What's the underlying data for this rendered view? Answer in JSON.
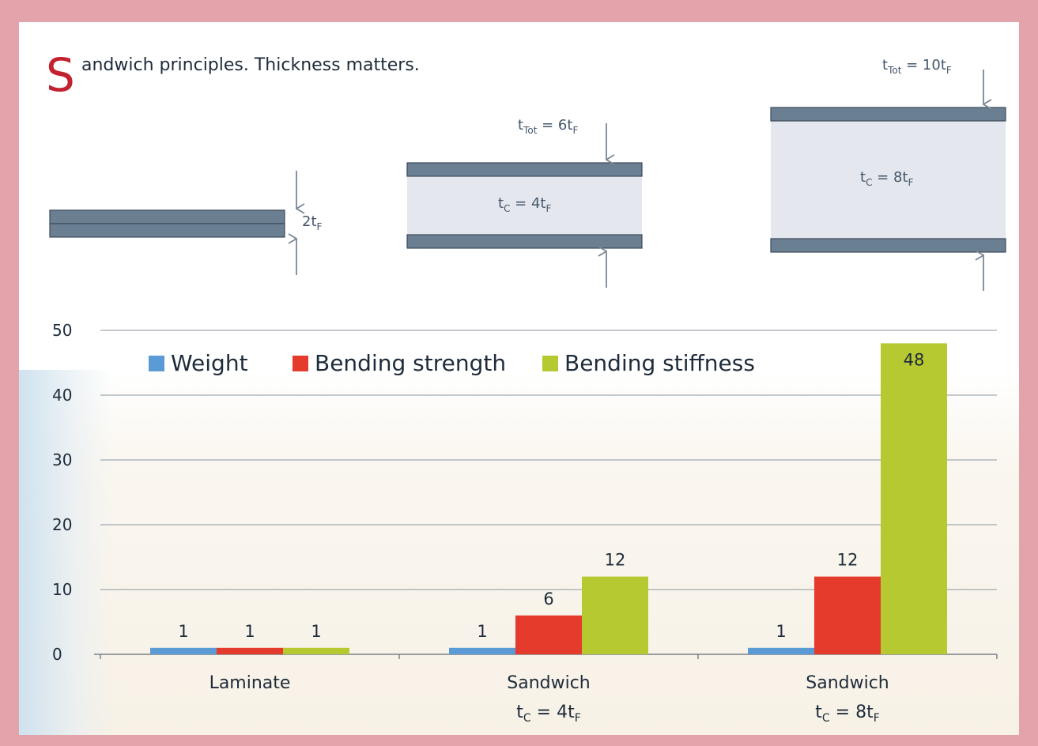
{
  "title": {
    "initial": "S",
    "rest": "andwich principles. Thickness matters."
  },
  "diagrams": {
    "laminate": {
      "thickness_main": "2t",
      "thickness_sub": "F"
    },
    "sandwich_4": {
      "total_prefix": "t",
      "total_sub": "Tot",
      "total_eq": " = 6t",
      "total_sub2": "F",
      "core_prefix": "t",
      "core_sub": "C",
      "core_eq": " = 4t",
      "core_sub2": "F"
    },
    "sandwich_8": {
      "total_prefix": "t",
      "total_sub": "Tot",
      "total_eq": " = 10t",
      "total_sub2": "F",
      "core_prefix": "t",
      "core_sub": "C",
      "core_eq": " = 8t",
      "core_sub2": "F"
    }
  },
  "colors": {
    "frame": "#e2a3aa",
    "title_accent": "#c2212f",
    "skin": "#6b7f93",
    "core": "#e4e7ed",
    "arrow": "#7a8796"
  },
  "chart_data": {
    "type": "bar",
    "categories": [
      "Laminate",
      "Sandwich",
      "Sandwich"
    ],
    "category_sublabels": [
      null,
      {
        "prefix": "t",
        "sub": "C",
        "eq": " = 4t",
        "sub2": "F"
      },
      {
        "prefix": "t",
        "sub": "C",
        "eq": " = 8t",
        "sub2": "F"
      }
    ],
    "series": [
      {
        "name": "Weight",
        "color": "#5b9bd5",
        "values": [
          1,
          1,
          1
        ]
      },
      {
        "name": "Bending strength",
        "color": "#e53b2c",
        "values": [
          1,
          6,
          12
        ]
      },
      {
        "name": "Bending stiffness",
        "color": "#b7c930",
        "values": [
          1,
          12,
          48
        ]
      }
    ],
    "y_ticks": [
      0,
      10,
      20,
      30,
      40,
      50
    ],
    "ylim": [
      0,
      50
    ],
    "grid": true,
    "legend_position": "top"
  }
}
